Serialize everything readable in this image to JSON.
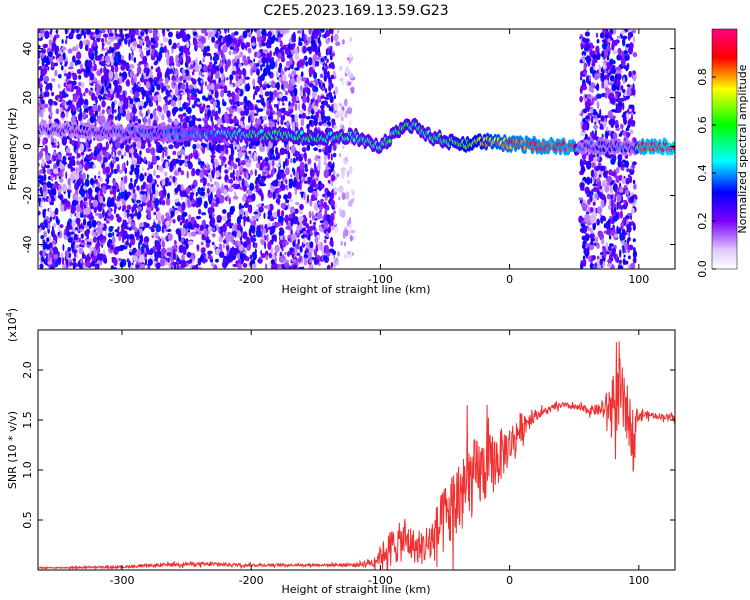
{
  "title": "C2E5.2023.169.13.59.G23",
  "chart_data": [
    {
      "type": "heatmap",
      "xlabel": "Height of straight line (km)",
      "ylabel": "Frequency (Hz)",
      "xlim": [
        -365,
        128
      ],
      "ylim": [
        -50,
        48
      ],
      "x_ticks": [
        -300,
        -200,
        -100,
        0,
        100
      ],
      "x_tick_labels": [
        "-300",
        "-200",
        "-100",
        "0",
        "100"
      ],
      "y_ticks": [
        -40,
        -20,
        0,
        20,
        40
      ],
      "y_tick_labels": [
        "-40",
        "-20",
        "0",
        "20",
        "40"
      ],
      "colorbar": {
        "label": "Normalized spectral amplitude",
        "range": [
          0,
          1
        ],
        "ticks": [
          0.0,
          0.2,
          0.4,
          0.6,
          0.8
        ],
        "tick_labels": [
          "0.0",
          "0.2",
          "0.4",
          "0.6",
          "0.8"
        ]
      },
      "ridge": {
        "x": [
          -360,
          -300,
          -260,
          -200,
          -150,
          -120,
          -100,
          -80,
          -60,
          -40,
          -20,
          0,
          50,
          54,
          97,
          100,
          128
        ],
        "y": [
          7,
          6,
          5,
          5,
          4,
          4,
          0,
          10,
          4,
          1,
          2,
          1,
          0,
          0,
          0,
          0,
          0
        ],
        "amplitude": [
          0.25,
          0.3,
          0.35,
          0.5,
          0.55,
          0.5,
          0.5,
          0.55,
          0.5,
          0.6,
          0.75,
          0.85,
          0.9,
          0.3,
          0.3,
          0.9,
          0.95
        ]
      },
      "noise_regions": [
        {
          "x": [
            -365,
            -135
          ],
          "density": "high"
        },
        {
          "x": [
            -135,
            -120
          ],
          "density": "low"
        },
        {
          "x": [
            55,
            97
          ],
          "density": "high"
        }
      ],
      "grid": false
    },
    {
      "type": "line",
      "xlabel": "Height of straight line (km)",
      "ylabel": "SNR (10 * v/v)",
      "multiplier": "(x10",
      "multiplier_exp": "4",
      "multiplier_close": ")",
      "xlim": [
        -365,
        128
      ],
      "ylim": [
        0,
        2.4
      ],
      "x_ticks": [
        -300,
        -200,
        -100,
        0,
        100
      ],
      "x_tick_labels": [
        "-300",
        "-200",
        "-100",
        "0",
        "100"
      ],
      "y_ticks": [
        0.5,
        1.0,
        1.5,
        2.0
      ],
      "y_tick_labels": [
        "0.5",
        "1.0",
        "1.5",
        "2.0"
      ],
      "series": [
        {
          "color": "#f03030",
          "x": [
            -365,
            -300,
            -250,
            -200,
            -150,
            -120,
            -105,
            -100,
            -90,
            -80,
            -70,
            -60,
            -50,
            -40,
            -30,
            -20,
            -10,
            0,
            10,
            20,
            30,
            40,
            50,
            60,
            70,
            80,
            85,
            90,
            95,
            100,
            110,
            128
          ],
          "y": [
            0.02,
            0.03,
            0.06,
            0.05,
            0.05,
            0.05,
            0.08,
            0.15,
            0.25,
            0.3,
            0.2,
            0.3,
            0.5,
            0.7,
            0.9,
            1.0,
            1.1,
            1.25,
            1.45,
            1.55,
            1.6,
            1.65,
            1.63,
            1.6,
            1.6,
            1.65,
            1.75,
            1.6,
            1.4,
            1.55,
            1.55,
            1.52
          ],
          "noise": [
            0.005,
            0.01,
            0.02,
            0.015,
            0.01,
            0.02,
            0.05,
            0.1,
            0.2,
            0.2,
            0.15,
            0.25,
            0.35,
            0.45,
            0.4,
            0.35,
            0.3,
            0.2,
            0.15,
            0.05,
            0.03,
            0.03,
            0.03,
            0.04,
            0.06,
            0.25,
            0.4,
            0.3,
            0.25,
            0.05,
            0.03,
            0.03
          ]
        }
      ],
      "grid": false
    }
  ]
}
